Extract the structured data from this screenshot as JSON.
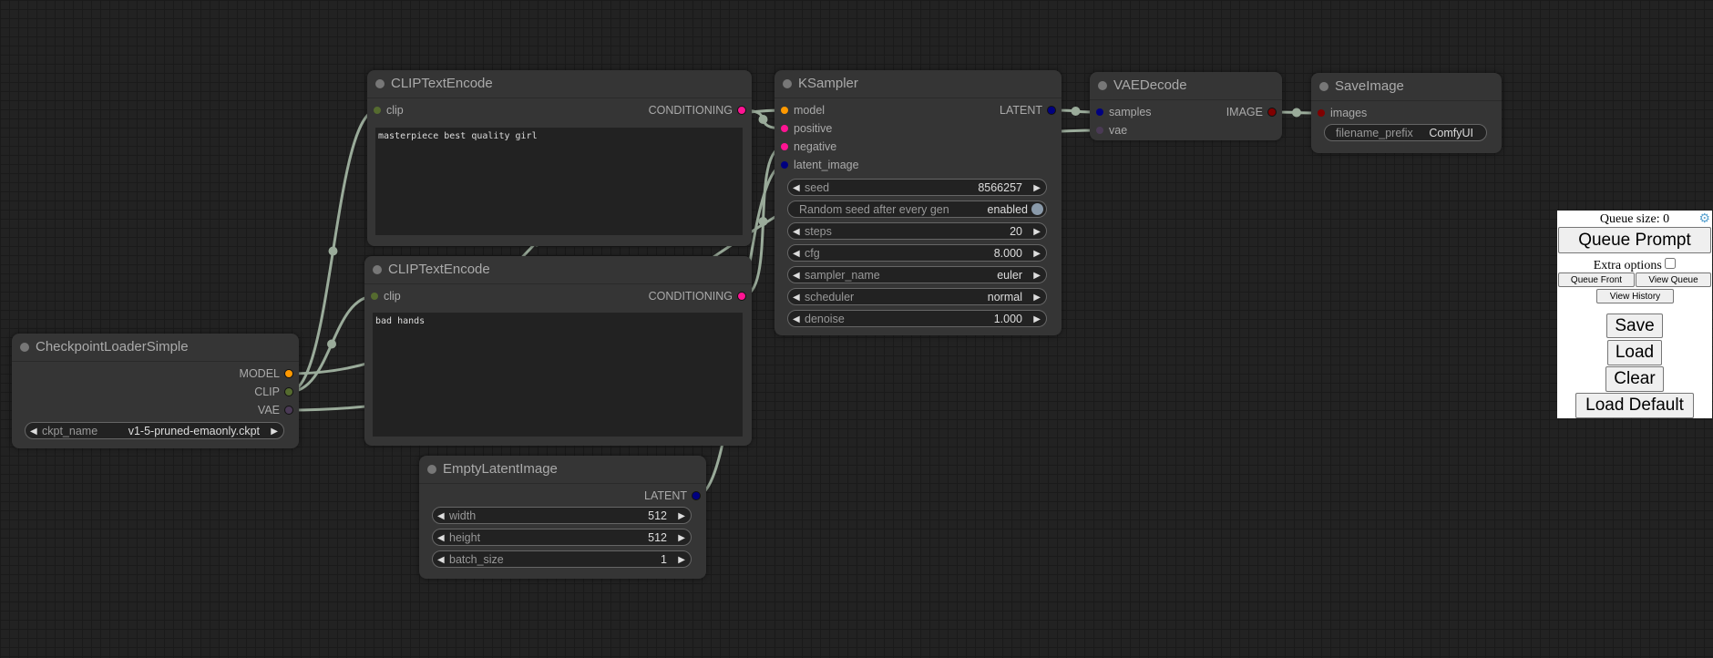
{
  "nodes": [
    {
      "id": "ckpt",
      "title": "CheckpointLoaderSimple",
      "inputs": [],
      "outputs": [
        {
          "name": "MODEL",
          "color": "#ff9900"
        },
        {
          "name": "CLIP",
          "color": "#556b2f"
        },
        {
          "name": "VAE",
          "color": "#4a3a55"
        }
      ],
      "widgets": [
        {
          "label": "ckpt_name",
          "value": "v1-5-pruned-emaonly.ckpt",
          "arrows": true
        }
      ]
    },
    {
      "id": "clip1",
      "title": "CLIPTextEncode",
      "inputs": [
        {
          "name": "clip",
          "color": "#556b2f"
        }
      ],
      "outputs": [
        {
          "name": "CONDITIONING",
          "color": "#ff1493"
        }
      ],
      "text": "masterpiece best quality girl"
    },
    {
      "id": "clip2",
      "title": "CLIPTextEncode",
      "inputs": [
        {
          "name": "clip",
          "color": "#556b2f"
        }
      ],
      "outputs": [
        {
          "name": "CONDITIONING",
          "color": "#ff1493"
        }
      ],
      "text": "bad hands"
    },
    {
      "id": "latent",
      "title": "EmptyLatentImage",
      "inputs": [],
      "outputs": [
        {
          "name": "LATENT",
          "color": "#000080"
        }
      ],
      "widgets": [
        {
          "label": "width",
          "value": "512",
          "arrows": true
        },
        {
          "label": "height",
          "value": "512",
          "arrows": true
        },
        {
          "label": "batch_size",
          "value": "1",
          "arrows": true
        }
      ]
    },
    {
      "id": "ks",
      "title": "KSampler",
      "inputs": [
        {
          "name": "model",
          "color": "#ff9900"
        },
        {
          "name": "positive",
          "color": "#ff1493"
        },
        {
          "name": "negative",
          "color": "#ff1493"
        },
        {
          "name": "latent_image",
          "color": "#000080"
        }
      ],
      "outputs": [
        {
          "name": "LATENT",
          "color": "#000080"
        }
      ],
      "widgets": [
        {
          "label": "seed",
          "value": "8566257",
          "arrows": true
        },
        {
          "label": "Random seed after every gen",
          "value": "enabled",
          "toggle": true
        },
        {
          "label": "steps",
          "value": "20",
          "arrows": true
        },
        {
          "label": "cfg",
          "value": "8.000",
          "arrows": true
        },
        {
          "label": "sampler_name",
          "value": "euler",
          "arrows": true
        },
        {
          "label": "scheduler",
          "value": "normal",
          "arrows": true
        },
        {
          "label": "denoise",
          "value": "1.000",
          "arrows": true
        }
      ]
    },
    {
      "id": "vae",
      "title": "VAEDecode",
      "inputs": [
        {
          "name": "samples",
          "color": "#000080"
        },
        {
          "name": "vae",
          "color": "#4a3a55"
        }
      ],
      "outputs": [
        {
          "name": "IMAGE",
          "color": "#800000"
        }
      ]
    },
    {
      "id": "save",
      "title": "SaveImage",
      "inputs": [
        {
          "name": "images",
          "color": "#800000"
        }
      ],
      "outputs": [],
      "widgets": [
        {
          "label": "filename_prefix",
          "value": "ComfyUI",
          "text": true
        }
      ]
    }
  ],
  "link_color": "#9aab9a",
  "panel": {
    "queue_size": "Queue size: 0",
    "queue_prompt": "Queue Prompt",
    "extra_options": "Extra options",
    "queue_front": "Queue Front",
    "view_queue": "View Queue",
    "view_history": "View History",
    "save": "Save",
    "load": "Load",
    "clear": "Clear",
    "load_default": "Load Default"
  }
}
